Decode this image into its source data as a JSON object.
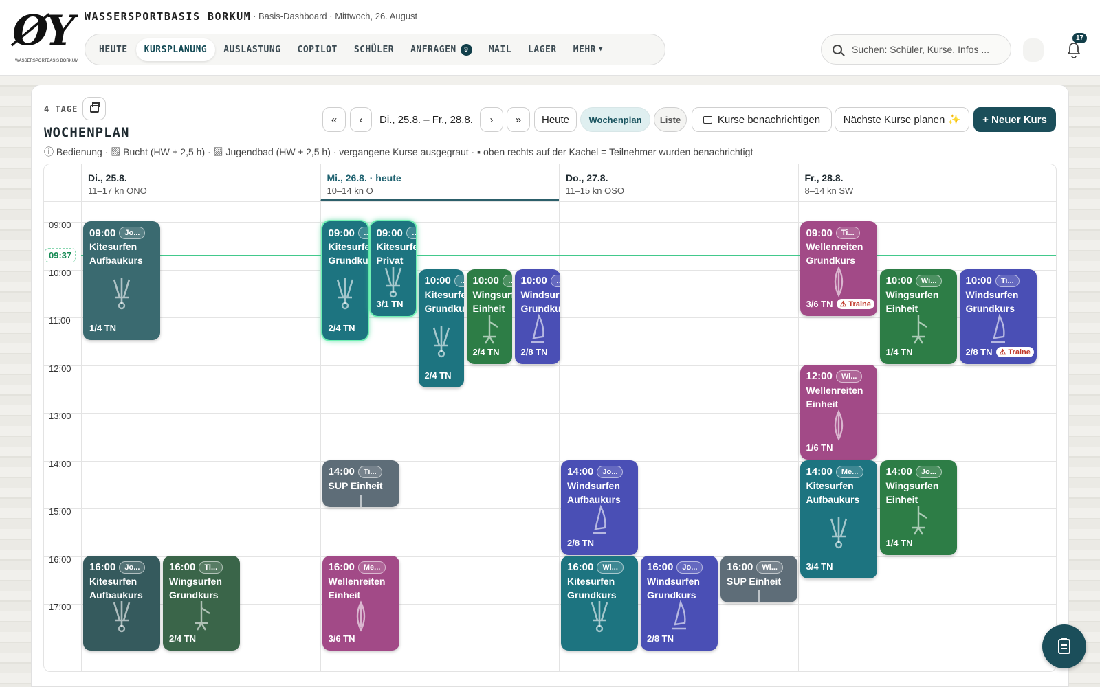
{
  "header": {
    "logo_text": "ØY",
    "logo_subtext": "WASSERSPORTBASIS BORKUM",
    "brand": "WASSERSPORTBASIS BORKUM",
    "context": "· Basis-Dashboard · Mittwoch, 26. August",
    "nav": [
      {
        "label": "HEUTE"
      },
      {
        "label": "KURSPLANUNG",
        "active": true
      },
      {
        "label": "AUSLASTUNG"
      },
      {
        "label": "COPILOT"
      },
      {
        "label": "SCHÜLER"
      },
      {
        "label": "ANFRAGEN",
        "badge": "9"
      },
      {
        "label": "MAIL"
      },
      {
        "label": "LAGER"
      },
      {
        "label": "MEHR",
        "dropdown": true
      }
    ],
    "search_placeholder": "Suchen: Schüler, Kurse, Infos ...",
    "notifications_count": "17"
  },
  "toolbar": {
    "range_label": "4 TAGE",
    "view_title": "WOCHENPLAN",
    "date_range": "Di., 25.8. – Fr., 28.8.",
    "today": "Heute",
    "view_week": "Wochenplan",
    "view_list": "Liste",
    "notify": "Kurse benachrichtigen",
    "plan_next": "Nächste Kurse planen ✨",
    "new_course": "+ Neuer Kurs",
    "legend": "ⓘ Bedienung · ▨ Bucht (HW ± 2,5 h) · ▨ Jugendbad (HW ± 2,5 h) · vergangene Kurse ausgegraut · ▪ oben rechts auf der Kachel = Teilnehmer wurden benachrichtigt"
  },
  "calendar": {
    "days": [
      {
        "name": "Di., 25.8.",
        "wind": "11–17 kn ONO"
      },
      {
        "name": "Mi., 26.8. · heute",
        "wind": "10–14 kn O",
        "today": true
      },
      {
        "name": "Do., 27.8.",
        "wind": "11–15 kn OSO"
      },
      {
        "name": "Fr., 28.8.",
        "wind": "8–14 kn SW"
      }
    ],
    "hours": [
      "09:00",
      "10:00",
      "11:00",
      "12:00",
      "13:00",
      "14:00",
      "15:00",
      "16:00",
      "17:00"
    ],
    "now": "09:37",
    "courses": [
      {
        "day": 0,
        "lane": 0,
        "start": 9,
        "end": 11.5,
        "time": "09:00",
        "tag": "Jo...",
        "name": [
          "Kitesurfen",
          "Aufbaukurs"
        ],
        "tn": "1/4 TN",
        "sport": "kite",
        "style": "kite"
      },
      {
        "day": 0,
        "lane": 0,
        "start": 16,
        "end": 18,
        "time": "16:00",
        "tag": "Jo...",
        "name": [
          "Kitesurfen",
          "Aufbaukurs"
        ],
        "tn": "",
        "sport": "kite",
        "style": "kite-d"
      },
      {
        "day": 0,
        "lane": 1,
        "start": 16,
        "end": 18,
        "time": "16:00",
        "tag": "Ti...",
        "name": [
          "Wingsurfen",
          "Grundkurs"
        ],
        "tn": "2/4 TN",
        "sport": "wing",
        "style": "wing-d"
      },
      {
        "day": 1,
        "lane": 0,
        "start": 9,
        "end": 11.5,
        "time": "09:00",
        "tag": "…",
        "name": [
          "Kitesurfen",
          "Grundkurs"
        ],
        "tn": "2/4 TN",
        "sport": "kite",
        "style": "kite-c",
        "current": true
      },
      {
        "day": 1,
        "lane": 1,
        "start": 9,
        "end": 11,
        "time": "09:00",
        "tag": "…",
        "name": [
          "Kitesurfen",
          "Privat"
        ],
        "tn": "3/1 TN",
        "sport": "kite",
        "style": "kite-c",
        "current": true
      },
      {
        "day": 1,
        "lane": 2,
        "start": 10,
        "end": 12.5,
        "time": "10:00",
        "tag": "…",
        "name": [
          "Kitesurfen",
          "Grundkurs"
        ],
        "tn": "2/4 TN",
        "sport": "kite",
        "style": "kite-c"
      },
      {
        "day": 1,
        "lane": 3,
        "start": 10,
        "end": 12,
        "time": "10:00",
        "tag": "…",
        "name": [
          "Wingsurfen",
          "Einheit"
        ],
        "tn": "2/4 TN",
        "sport": "wing",
        "style": "wing"
      },
      {
        "day": 1,
        "lane": 4,
        "start": 10,
        "end": 12,
        "time": "10:00",
        "tag": "…",
        "name": [
          "Windsurfen",
          "Grundkurs"
        ],
        "tn": "2/8 TN",
        "sport": "wind",
        "style": "wind"
      },
      {
        "day": 1,
        "lane": 0,
        "start": 14,
        "end": 15,
        "time": "14:00",
        "tag": "Ti...",
        "name": [
          "SUP Einheit"
        ],
        "tn": "",
        "sport": "sup",
        "style": "sup"
      },
      {
        "day": 1,
        "lane": 0,
        "start": 16,
        "end": 18,
        "time": "16:00",
        "tag": "Me...",
        "name": [
          "Wellenreiten",
          "Einheit"
        ],
        "tn": "3/6 TN",
        "sport": "welle",
        "style": "welle"
      },
      {
        "day": 2,
        "lane": 0,
        "start": 14,
        "end": 16,
        "time": "14:00",
        "tag": "Jo...",
        "name": [
          "Windsurfen",
          "Aufbaukurs"
        ],
        "tn": "2/8 TN",
        "sport": "wind",
        "style": "wind"
      },
      {
        "day": 2,
        "lane": 0,
        "start": 16,
        "end": 18,
        "time": "16:00",
        "tag": "Wi...",
        "name": [
          "Kitesurfen",
          "Grundkurs"
        ],
        "tn": "",
        "sport": "kite",
        "style": "kite-c"
      },
      {
        "day": 2,
        "lane": 1,
        "start": 16,
        "end": 18,
        "time": "16:00",
        "tag": "Jo...",
        "name": [
          "Windsurfen",
          "Grundkurs"
        ],
        "tn": "2/8 TN",
        "sport": "wind",
        "style": "wind"
      },
      {
        "day": 2,
        "lane": 2,
        "start": 16,
        "end": 17,
        "time": "16:00",
        "tag": "Wi...",
        "name": [
          "SUP Einheit"
        ],
        "tn": "",
        "sport": "sup",
        "style": "sup"
      },
      {
        "day": 3,
        "lane": 0,
        "start": 9,
        "end": 11,
        "time": "09:00",
        "tag": "Ti...",
        "name": [
          "Wellenreiten",
          "Grundkurs"
        ],
        "tn": "3/6 TN",
        "warn": "⚠ Traine",
        "sport": "welle",
        "style": "welle"
      },
      {
        "day": 3,
        "lane": 1,
        "start": 10,
        "end": 12,
        "time": "10:00",
        "tag": "Wi...",
        "name": [
          "Wingsurfen",
          "Einheit"
        ],
        "tn": "1/4 TN",
        "sport": "wing",
        "style": "wing"
      },
      {
        "day": 3,
        "lane": 2,
        "start": 10,
        "end": 12,
        "time": "10:00",
        "tag": "Ti...",
        "name": [
          "Windsurfen",
          "Grundkurs"
        ],
        "tn": "2/8 TN",
        "warn": "⚠ Traine",
        "sport": "wind",
        "style": "wind"
      },
      {
        "day": 3,
        "lane": 0,
        "start": 12,
        "end": 14,
        "time": "12:00",
        "tag": "Wi...",
        "name": [
          "Wellenreiten",
          "Einheit"
        ],
        "tn": "1/6 TN",
        "sport": "welle",
        "style": "welle"
      },
      {
        "day": 3,
        "lane": 0,
        "start": 14,
        "end": 16.5,
        "time": "14:00",
        "tag": "Me...",
        "name": [
          "Kitesurfen",
          "Aufbaukurs"
        ],
        "tn": "3/4 TN",
        "sport": "kite",
        "style": "kite-c"
      },
      {
        "day": 3,
        "lane": 1,
        "start": 14,
        "end": 16,
        "time": "14:00",
        "tag": "Jo...",
        "name": [
          "Wingsurfen",
          "Einheit"
        ],
        "tn": "1/4 TN",
        "sport": "wing",
        "style": "wing"
      }
    ]
  }
}
